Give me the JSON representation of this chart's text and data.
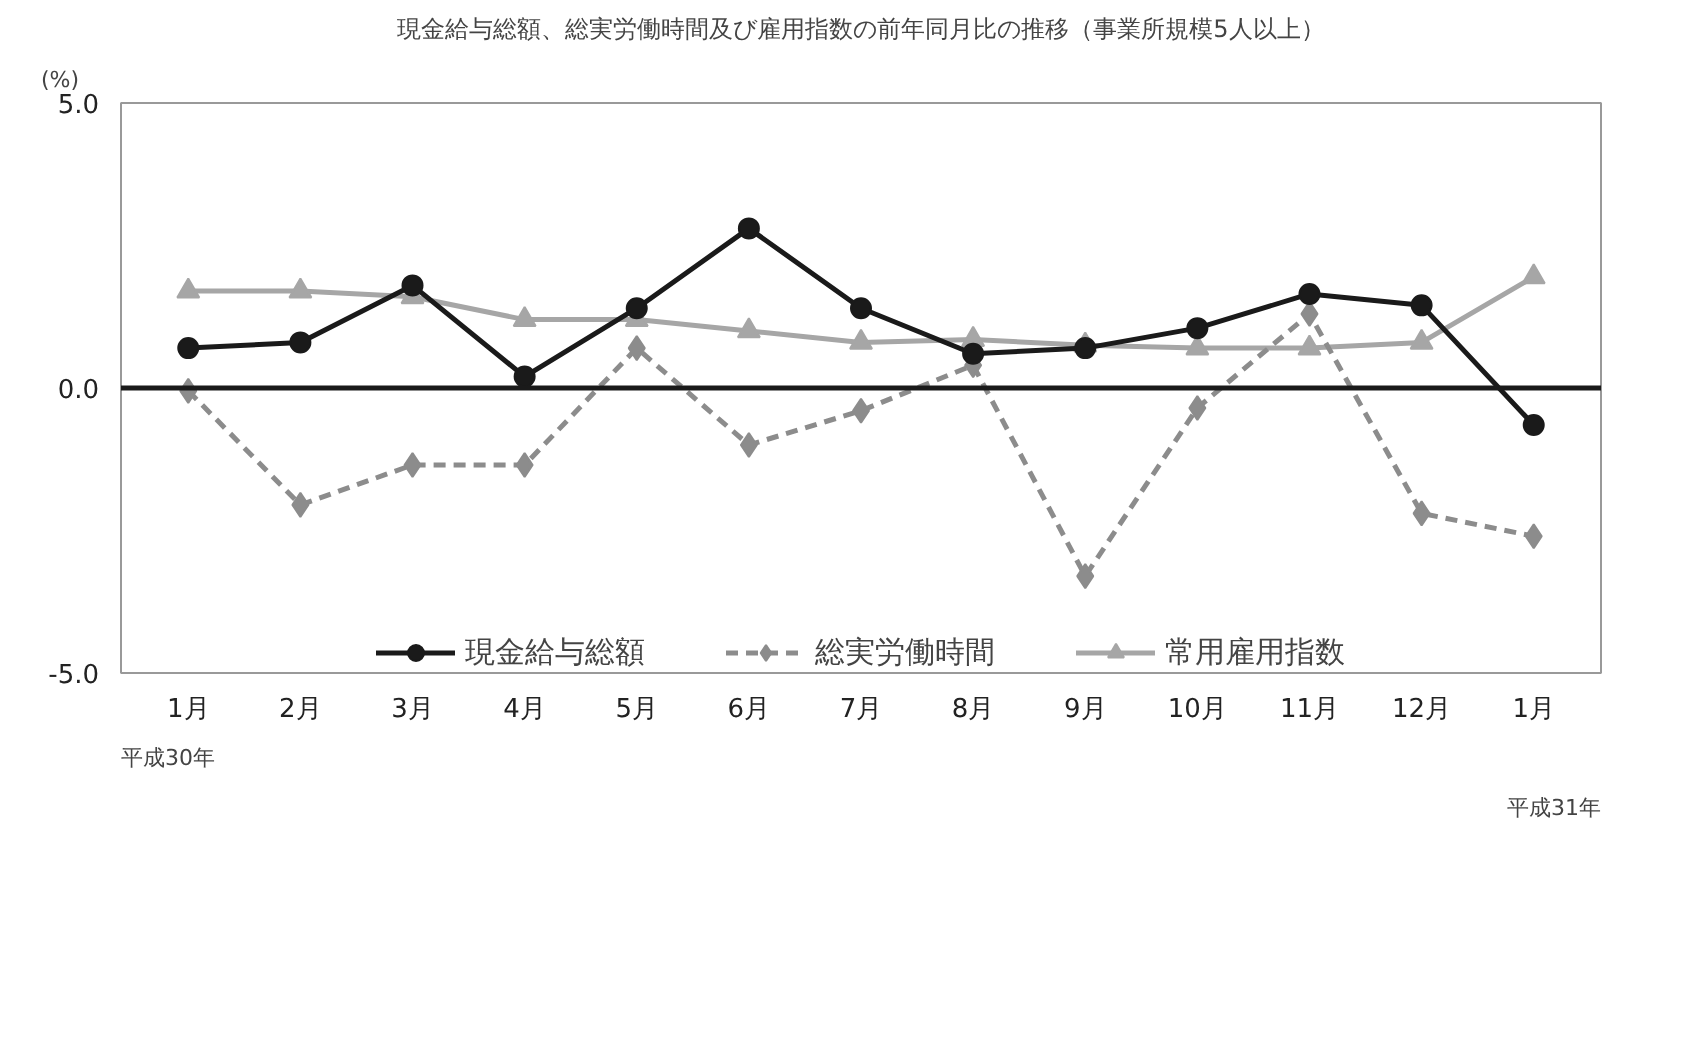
{
  "chart_data": {
    "type": "line",
    "title": "現金給与総額、総実労働時間及び雇用指数の前年同月比の推移（事業所規模5人以上）",
    "ylabel": "(%)",
    "categories": [
      "1月",
      "2月",
      "3月",
      "4月",
      "5月",
      "6月",
      "7月",
      "8月",
      "9月",
      "10月",
      "11月",
      "12月",
      "1月"
    ],
    "ylim": [
      -5.0,
      5.0
    ],
    "yticks": [
      {
        "value": 5,
        "label": "5.0"
      },
      {
        "value": 0,
        "label": "0.0"
      },
      {
        "value": -5,
        "label": "-5.0"
      }
    ],
    "grid": false,
    "legend": "bottom",
    "ref_lines": [
      {
        "axis": "y",
        "value": 0,
        "color": "#1a1a1a"
      }
    ],
    "annotations": [
      "平成30年",
      "平成31年"
    ],
    "series": [
      {
        "name": "現金給与総額",
        "color": "#1a1a1a",
        "marker": "circle",
        "line_style": "solid",
        "values": [
          0.7,
          0.8,
          1.8,
          0.2,
          1.4,
          2.8,
          1.4,
          0.6,
          0.7,
          1.05,
          1.65,
          1.45,
          -0.65
        ]
      },
      {
        "name": "総実労働時間",
        "color": "#8c8c8c",
        "marker": "diamond",
        "line_style": "dashed",
        "values": [
          -0.05,
          -2.05,
          -1.35,
          -1.35,
          0.7,
          -1.0,
          -0.4,
          0.4,
          -3.3,
          -0.35,
          1.3,
          -2.2,
          -2.6
        ]
      },
      {
        "name": "常用雇用指数",
        "color": "#a6a6a6",
        "marker": "triangle",
        "line_style": "solid",
        "values": [
          1.7,
          1.7,
          1.6,
          1.2,
          1.2,
          1.0,
          0.8,
          0.85,
          0.75,
          0.7,
          0.7,
          0.8,
          1.95
        ]
      }
    ]
  }
}
